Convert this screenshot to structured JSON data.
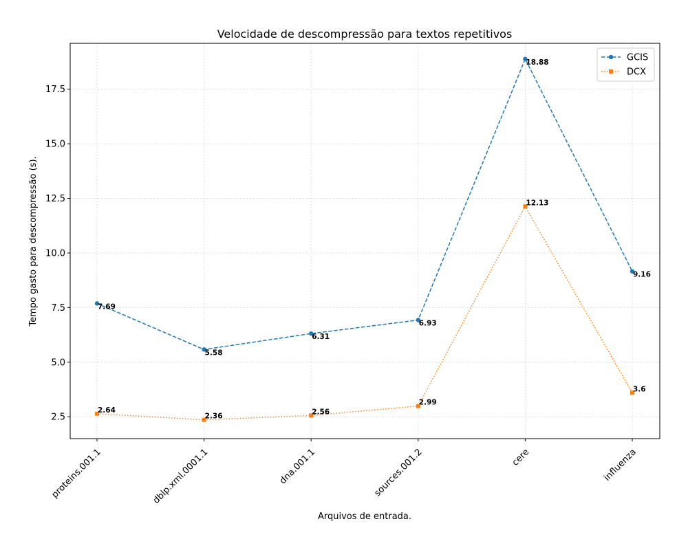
{
  "chart_data": {
    "type": "line",
    "title": "Velocidade de descompressão para textos repetitivos",
    "xlabel": "Arquivos de entrada.",
    "ylabel": "Tempo gasto para descompressão (s).",
    "categories": [
      "proteins.001.1",
      "dblp.xml.0001.1",
      "dna.001.1",
      "sources.001.2",
      "cere",
      "influenza"
    ],
    "yticks": [
      2.5,
      5.0,
      7.5,
      10.0,
      12.5,
      15.0,
      17.5
    ],
    "ytick_labels": [
      "2.5",
      "5.0",
      "7.5",
      "10.0",
      "12.5",
      "15.0",
      "17.5"
    ],
    "ylim": [
      1.5,
      19.6
    ],
    "grid": true,
    "legend_position": "top-right",
    "series": [
      {
        "name": "GCIS",
        "values": [
          7.69,
          5.58,
          6.31,
          6.93,
          18.88,
          9.16
        ],
        "labels": [
          "7.69",
          "5.58",
          "6.31",
          "6.93",
          "18.88",
          "9.16"
        ],
        "color": "#1f77b4",
        "linestyle": "dashed",
        "marker": "circle"
      },
      {
        "name": "DCX",
        "values": [
          2.64,
          2.36,
          2.56,
          2.99,
          12.13,
          3.6
        ],
        "labels": [
          "2.64",
          "2.36",
          "2.56",
          "2.99",
          "12.13",
          "3.6"
        ],
        "color": "#ff7f0e",
        "linestyle": "dotted",
        "marker": "square"
      }
    ]
  }
}
